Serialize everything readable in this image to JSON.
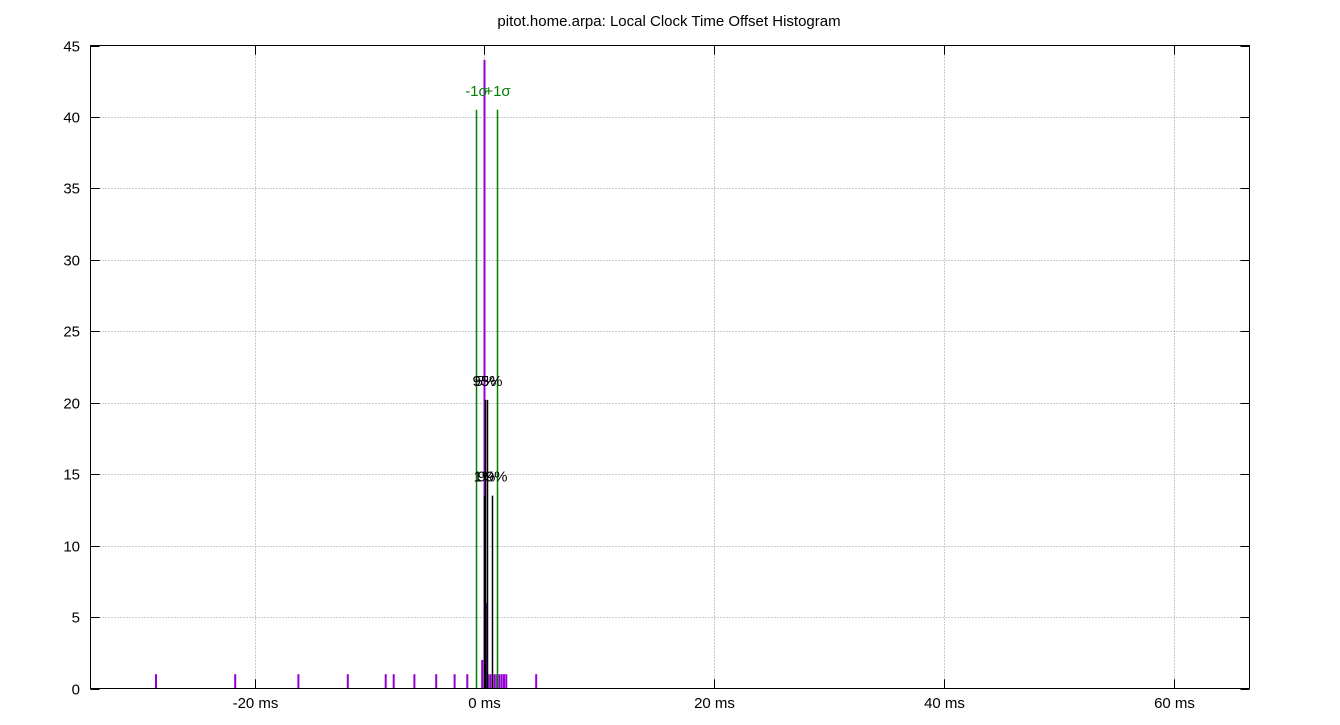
{
  "chart_data": {
    "type": "bar",
    "title": "pitot.home.arpa: Local Clock Time Offset Histogram",
    "xlabel": "",
    "ylabel": "",
    "xlim": [
      -34.3,
      66.6
    ],
    "ylim": [
      0,
      45
    ],
    "x_ticks": [
      {
        "value": -20,
        "label": "-20 ms"
      },
      {
        "value": 0,
        "label": "0 ms"
      },
      {
        "value": 20,
        "label": "20 ms"
      },
      {
        "value": 40,
        "label": "40 ms"
      },
      {
        "value": 60,
        "label": "60 ms"
      }
    ],
    "y_ticks": [
      {
        "value": 0,
        "label": "0"
      },
      {
        "value": 5,
        "label": "5"
      },
      {
        "value": 10,
        "label": "10"
      },
      {
        "value": 15,
        "label": "15"
      },
      {
        "value": 20,
        "label": "20"
      },
      {
        "value": 25,
        "label": "25"
      },
      {
        "value": 30,
        "label": "30"
      },
      {
        "value": 35,
        "label": "35"
      },
      {
        "value": 40,
        "label": "40"
      },
      {
        "value": 45,
        "label": "45"
      }
    ],
    "grid": true,
    "histogram": {
      "color": "#9400d3",
      "bins": [
        {
          "x": -28.6,
          "count": 1
        },
        {
          "x": -21.7,
          "count": 1
        },
        {
          "x": -16.2,
          "count": 1
        },
        {
          "x": -11.9,
          "count": 1
        },
        {
          "x": -8.6,
          "count": 1
        },
        {
          "x": -7.9,
          "count": 1
        },
        {
          "x": -6.1,
          "count": 1
        },
        {
          "x": -4.2,
          "count": 1
        },
        {
          "x": -2.6,
          "count": 1
        },
        {
          "x": -1.5,
          "count": 1
        },
        {
          "x": -0.2,
          "count": 2
        },
        {
          "x": 0.0,
          "count": 44
        },
        {
          "x": 0.15,
          "count": 6
        },
        {
          "x": 0.3,
          "count": 1
        },
        {
          "x": 0.5,
          "count": 1
        },
        {
          "x": 0.7,
          "count": 1
        },
        {
          "x": 0.9,
          "count": 1
        },
        {
          "x": 1.1,
          "count": 1
        },
        {
          "x": 1.3,
          "count": 1
        },
        {
          "x": 1.5,
          "count": 1
        },
        {
          "x": 1.7,
          "count": 1
        },
        {
          "x": 1.9,
          "count": 1
        },
        {
          "x": 4.5,
          "count": 1
        }
      ]
    },
    "markers": [
      {
        "label": "-1σ",
        "x": -0.75,
        "height": 40.5,
        "color": "#008000"
      },
      {
        "label": "+1σ",
        "x": 1.1,
        "height": 40.5,
        "color": "#008000"
      },
      {
        "label": "5%",
        "x": 0.05,
        "height": 20.2,
        "color": "#000000"
      },
      {
        "label": "95%",
        "x": 0.2,
        "height": 20.2,
        "color": "#000000"
      },
      {
        "label": "1%",
        "x": 0.0,
        "height": 13.5,
        "color": "#000000"
      },
      {
        "label": "99%",
        "x": 0.65,
        "height": 13.5,
        "color": "#000000"
      }
    ]
  }
}
